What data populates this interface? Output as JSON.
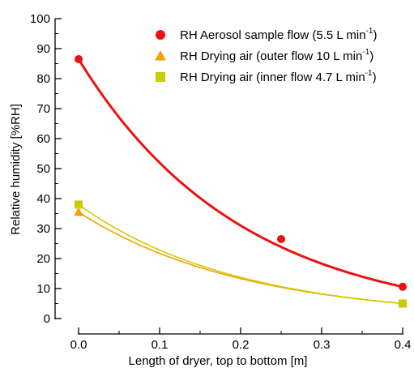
{
  "chart_data": {
    "type": "scatter",
    "xlabel": "Length of dryer, top to bottom [m]",
    "ylabel": "Relative humidity [%RH]",
    "xlim": [
      0.0,
      0.4
    ],
    "ylim": [
      0,
      100
    ],
    "xticks": [
      0.0,
      0.1,
      0.2,
      0.3,
      0.4
    ],
    "xtick_labels": [
      "0.0",
      "0.1",
      "0.2",
      "0.3",
      "0.4"
    ],
    "yticks": [
      0,
      10,
      20,
      30,
      40,
      50,
      60,
      70,
      80,
      90,
      100
    ],
    "ytick_labels": [
      "0",
      "10",
      "20",
      "30",
      "40",
      "50",
      "60",
      "70",
      "80",
      "90",
      "100"
    ],
    "grid": false,
    "legend_position": "top-right",
    "series": [
      {
        "name_main": "RH Aerosol sample flow (5.5 L min",
        "name_sup": "-1",
        "name_close": ")",
        "color": "#ee1111",
        "marker": "circle",
        "x": [
          0.0,
          0.25,
          0.4
        ],
        "y": [
          86.5,
          26.5,
          10.6
        ],
        "fit_decay": 5.0
      },
      {
        "name_main": "RH Drying air (outer flow 10 L min",
        "name_sup": "-1",
        "name_close": ")",
        "color": "#f5a000",
        "marker": "triangle",
        "x": [
          0.0,
          0.4
        ],
        "y": [
          35.5,
          5.0
        ],
        "fit_decay": 4.9
      },
      {
        "name_main": "RH Drying air (inner flow 4.7 L min",
        "name_sup": "-1",
        "name_close": ")",
        "color": "#cccc00",
        "marker": "square",
        "x": [
          0.0,
          0.4
        ],
        "y": [
          38.0,
          5.0
        ],
        "fit_decay": 5.1
      }
    ]
  }
}
